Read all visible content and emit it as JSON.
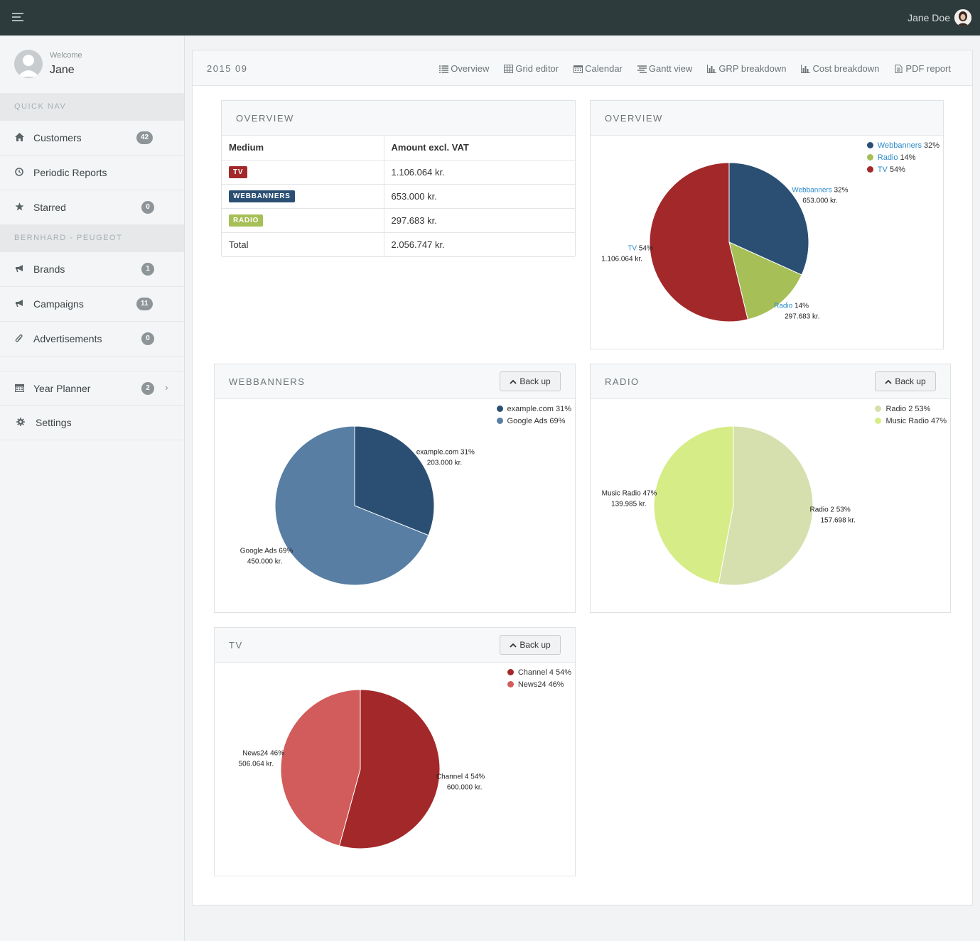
{
  "topbar": {
    "user_name": "Jane Doe"
  },
  "sidebar": {
    "welcome_label": "Welcome",
    "welcome_name": "Jane",
    "sections": [
      {
        "title": "QUICK NAV"
      },
      {
        "title": "BERNHARD - PEUGEOT"
      }
    ],
    "items": [
      {
        "label": "Customers",
        "badge": "42",
        "icon": "home-icon"
      },
      {
        "label": "Periodic Reports",
        "badge": "",
        "icon": "clock-icon"
      },
      {
        "label": "Starred",
        "badge": "0",
        "icon": "star-icon"
      },
      {
        "label": "Brands",
        "badge": "1",
        "icon": "megaphone-icon"
      },
      {
        "label": "Campaigns",
        "badge": "11",
        "icon": "megaphone-icon"
      },
      {
        "label": "Advertisements",
        "badge": "0",
        "icon": "paperclip-icon"
      },
      {
        "label": "Year Planner",
        "badge": "2",
        "icon": "calendar-icon"
      },
      {
        "label": "Settings",
        "badge": "",
        "icon": "gear-icon"
      }
    ]
  },
  "main": {
    "title": "2015 09",
    "tabs": [
      {
        "label": "Overview",
        "icon": "list-icon"
      },
      {
        "label": "Grid editor",
        "icon": "grid-icon"
      },
      {
        "label": "Calendar",
        "icon": "calendar-icon"
      },
      {
        "label": "Gantt view",
        "icon": "gantt-icon"
      },
      {
        "label": "GRP breakdown",
        "icon": "bar-chart-icon"
      },
      {
        "label": "Cost breakdown",
        "icon": "bar-chart-icon"
      },
      {
        "label": "PDF report",
        "icon": "document-icon"
      }
    ]
  },
  "overview_table": {
    "title": "OVERVIEW",
    "headers": [
      "Medium",
      "Amount excl. VAT"
    ],
    "rows": [
      {
        "medium": "TV",
        "color": "#a3282a",
        "amount": "1.106.064 kr."
      },
      {
        "medium": "WEBBANNERS",
        "color": "#2b4f73",
        "amount": "653.000 kr."
      },
      {
        "medium": "RADIO",
        "color": "#a6bf57",
        "amount": "297.683 kr."
      }
    ],
    "total_label": "Total",
    "total_amount": "2.056.747 kr."
  },
  "back_label": "Back up",
  "chart_data": [
    {
      "type": "pie",
      "title": "OVERVIEW",
      "labels_colored": true,
      "series": [
        {
          "name": "Webbanners",
          "pct": "32%",
          "amount": "653.000 kr.",
          "value": 653000,
          "color": "#2b4f73"
        },
        {
          "name": "Radio",
          "pct": "14%",
          "amount": "297.683 kr.",
          "value": 297683,
          "color": "#a6bf57"
        },
        {
          "name": "TV",
          "pct": "54%",
          "amount": "1.106.064 kr.",
          "value": 1106064,
          "color": "#a3282a"
        }
      ]
    },
    {
      "type": "pie",
      "title": "WEBBANNERS",
      "labels_colored": false,
      "series": [
        {
          "name": "example.com",
          "pct": "31%",
          "amount": "203.000 kr.",
          "value": 203000,
          "color": "#2b4f73"
        },
        {
          "name": "Google Ads",
          "pct": "69%",
          "amount": "450.000 kr.",
          "value": 450000,
          "color": "#587ea4"
        }
      ]
    },
    {
      "type": "pie",
      "title": "RADIO",
      "labels_colored": false,
      "series": [
        {
          "name": "Radio 2",
          "pct": "53%",
          "amount": "157.698 kr.",
          "value": 157698,
          "color": "#d5e0ae"
        },
        {
          "name": "Music Radio",
          "pct": "47%",
          "amount": "139.985 kr.",
          "value": 139985,
          "color": "#d6ed87"
        }
      ]
    },
    {
      "type": "pie",
      "title": "TV",
      "labels_colored": false,
      "series": [
        {
          "name": "Channel 4",
          "pct": "54%",
          "amount": "600.000 kr.",
          "value": 600000,
          "color": "#a3282a"
        },
        {
          "name": "News24",
          "pct": "46%",
          "amount": "506.064 kr.",
          "value": 506064,
          "color": "#d25b5b"
        }
      ]
    }
  ]
}
